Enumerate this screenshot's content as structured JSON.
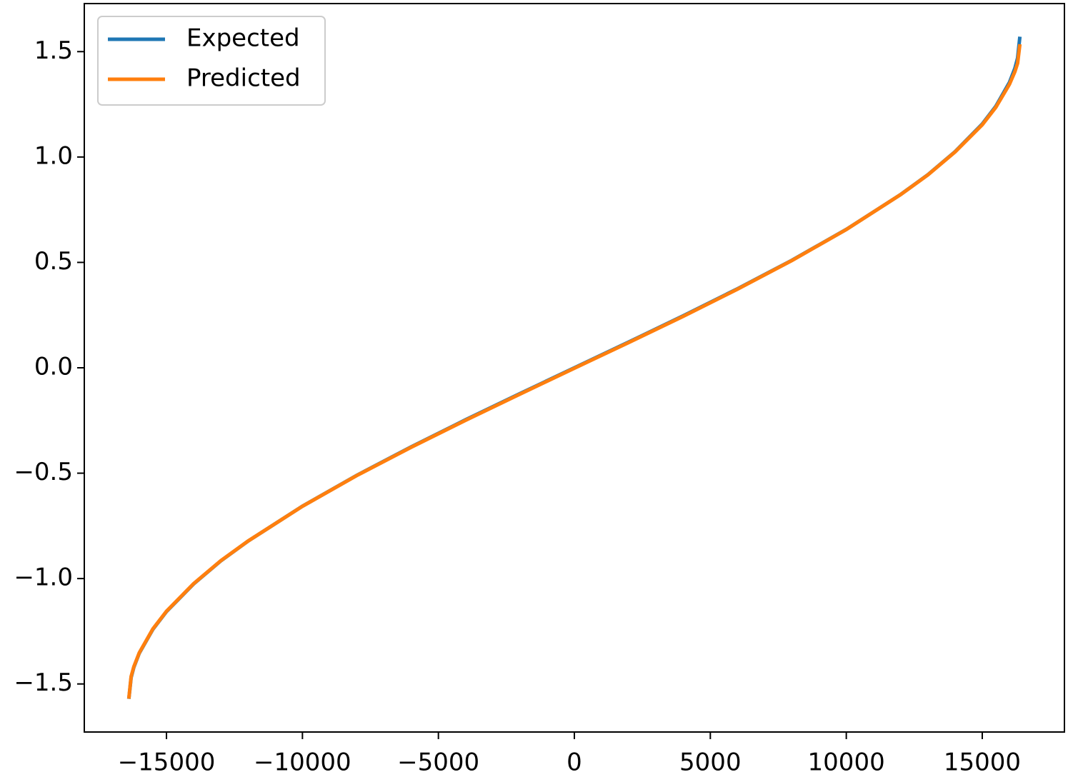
{
  "chart_data": {
    "type": "line",
    "x": [
      -16384,
      -16300,
      -16200,
      -16000,
      -15500,
      -15000,
      -14000,
      -13000,
      -12000,
      -10000,
      -8000,
      -6000,
      -4000,
      -2000,
      0,
      2000,
      4000,
      6000,
      8000,
      10000,
      12000,
      13000,
      14000,
      15000,
      15500,
      16000,
      16200,
      16300,
      16384
    ],
    "series": [
      {
        "name": "Expected",
        "color": "#1f77b4",
        "values": [
          -1.5708,
          -1.4695,
          -1.4209,
          -1.354,
          -1.2408,
          -1.1565,
          -1.0254,
          -0.9159,
          -0.8223,
          -0.6567,
          -0.5101,
          -0.375,
          -0.2466,
          -0.1224,
          0,
          0.1224,
          0.2466,
          0.375,
          0.5101,
          0.6567,
          0.8223,
          0.9159,
          1.0254,
          1.1565,
          1.2408,
          1.354,
          1.4209,
          1.4695,
          1.5708
        ]
      },
      {
        "name": "Predicted",
        "color": "#ff7f0e",
        "values": [
          -1.57,
          -1.465,
          -1.418,
          -1.352,
          -1.239,
          -1.155,
          -1.024,
          -0.915,
          -0.822,
          -0.657,
          -0.511,
          -0.377,
          -0.249,
          -0.125,
          -0.002,
          0.12,
          0.244,
          0.373,
          0.509,
          0.656,
          0.822,
          0.915,
          1.024,
          1.153,
          1.236,
          1.345,
          1.405,
          1.445,
          1.535
        ]
      }
    ],
    "xlim": [
      -18022,
      18022
    ],
    "ylim": [
      -1.728,
      1.728
    ],
    "xticks": [
      {
        "value": -15000,
        "label": "−15000"
      },
      {
        "value": -10000,
        "label": "−10000"
      },
      {
        "value": -5000,
        "label": "−5000"
      },
      0,
      5000,
      10000,
      15000
    ],
    "yticks": [
      {
        "value": -1.5,
        "label": "−1.5"
      },
      {
        "value": -1.0,
        "label": "−1.0"
      },
      {
        "value": -0.5,
        "label": "−0.5"
      },
      {
        "value": 0,
        "label": "0.0"
      },
      0.5,
      {
        "value": 1.0,
        "label": "1.0"
      },
      1.5
    ],
    "legend": "upper left"
  }
}
